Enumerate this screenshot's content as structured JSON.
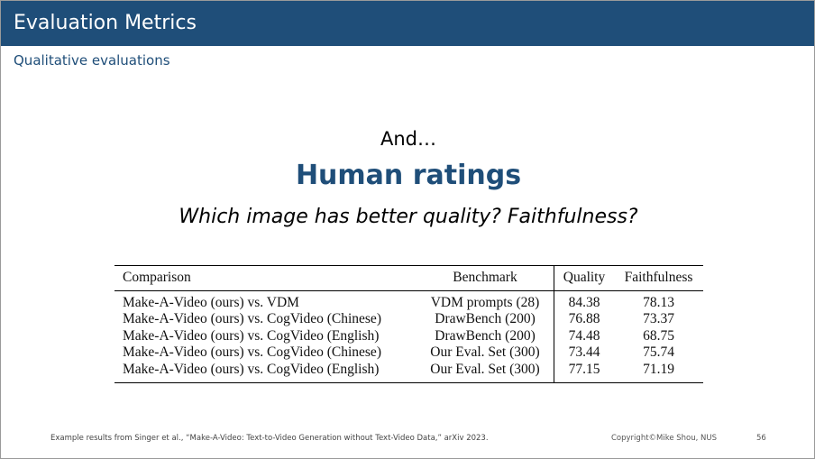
{
  "header": {
    "title": "Evaluation Metrics",
    "subtitle": "Qualitative evaluations",
    "bar_color": "#1f4e79"
  },
  "body": {
    "intro": "And…",
    "headline": "Human ratings",
    "question": "Which image has better quality? Faithfulness?"
  },
  "table": {
    "headers": {
      "comparison": "Comparison",
      "benchmark": "Benchmark",
      "quality": "Quality",
      "faithfulness": "Faithfulness"
    },
    "rows": [
      {
        "comparison": "Make-A-Video (ours) vs. VDM",
        "benchmark": "VDM prompts (28)",
        "quality": "84.38",
        "faithfulness": "78.13"
      },
      {
        "comparison": "Make-A-Video (ours) vs. CogVideo (Chinese)",
        "benchmark": "DrawBench (200)",
        "quality": "76.88",
        "faithfulness": "73.37"
      },
      {
        "comparison": "Make-A-Video (ours) vs. CogVideo (English)",
        "benchmark": "DrawBench (200)",
        "quality": "74.48",
        "faithfulness": "68.75"
      },
      {
        "comparison": "Make-A-Video (ours) vs. CogVideo (Chinese)",
        "benchmark": "Our Eval. Set (300)",
        "quality": "73.44",
        "faithfulness": "75.74"
      },
      {
        "comparison": "Make-A-Video (ours) vs. CogVideo (English)",
        "benchmark": "Our Eval. Set (300)",
        "quality": "77.15",
        "faithfulness": "71.19"
      }
    ]
  },
  "footer": {
    "citation": "Example results from Singer et al., “Make-A-Video: Text-to-Video Generation without Text-Video Data,” arXiv 2023.",
    "copyright": "Copyright©Mike Shou, NUS",
    "page_number": "56"
  }
}
